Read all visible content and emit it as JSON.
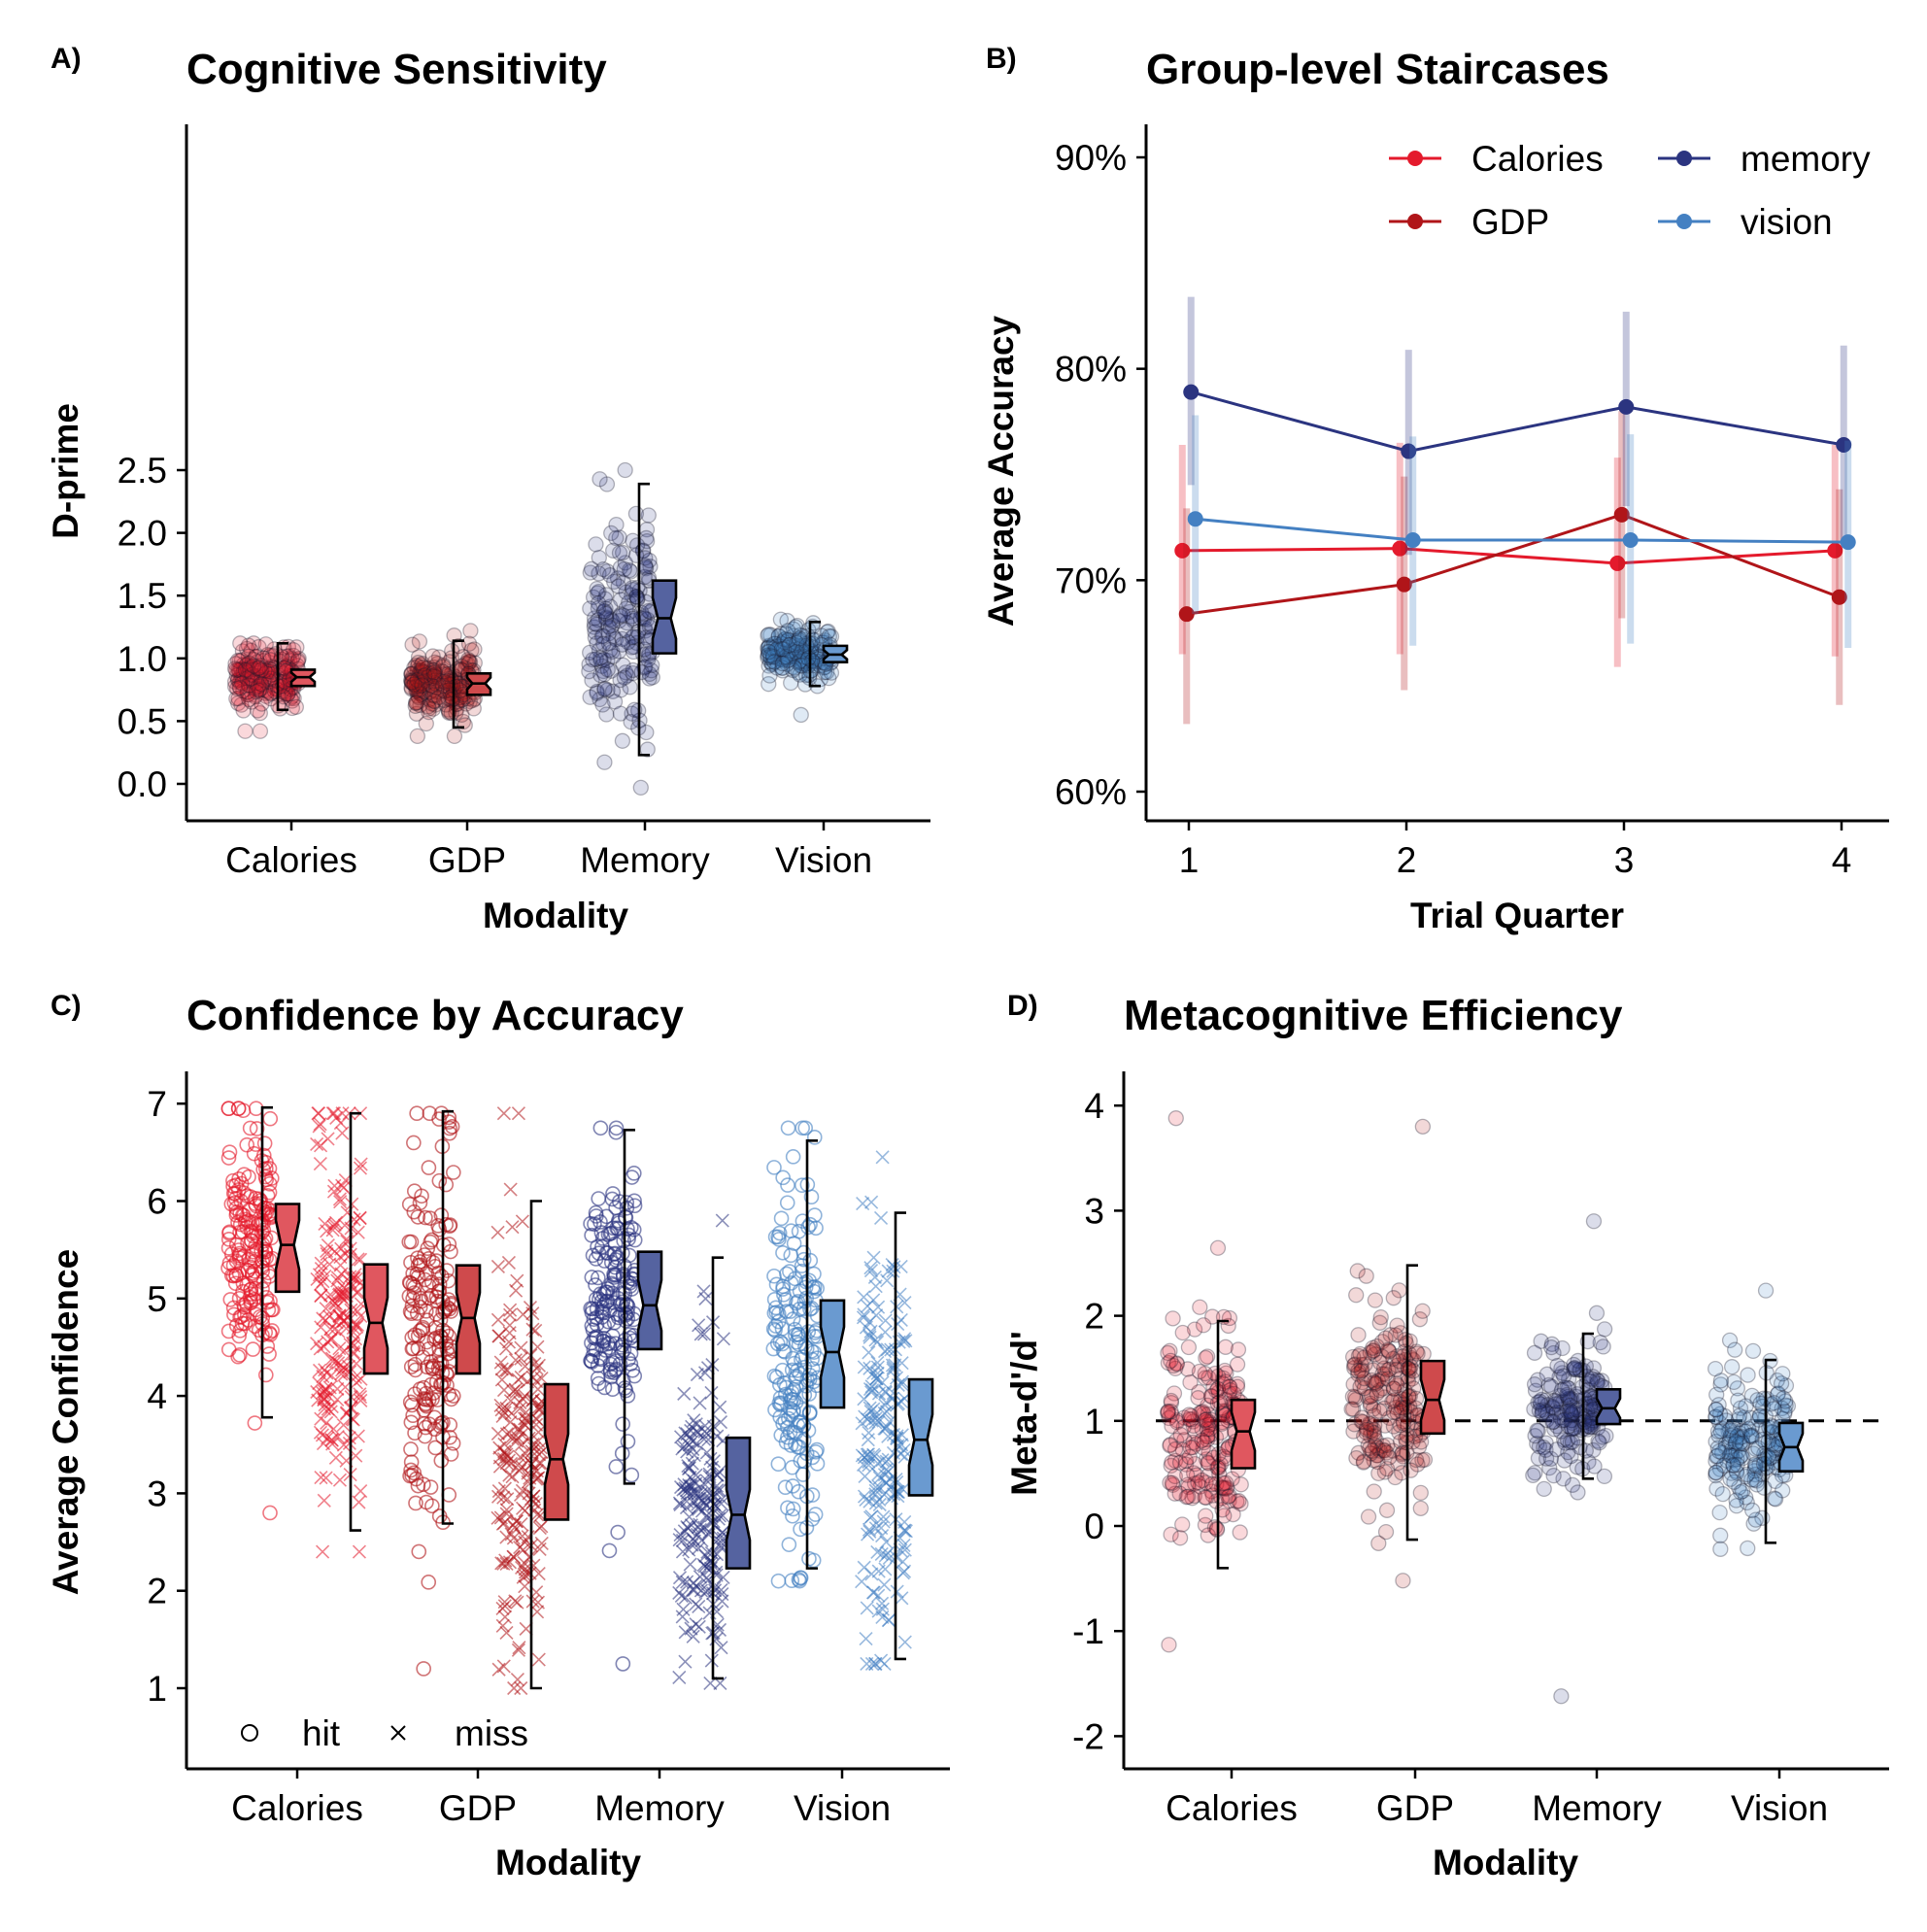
{
  "palette": {
    "Calories": "#e41a2c",
    "GDP": "#b01519",
    "Memory": "#2b3480",
    "Vision": "#4480c2",
    "box_Calories": "#e0575f",
    "box_GDP": "#cf4a4c",
    "box_Memory": "#5563a0",
    "box_Vision": "#6a9ad0"
  },
  "chart_data": [
    {
      "panel": "A)",
      "type": "scatter",
      "subtype": "jittered points with notched boxplot",
      "title": "Cognitive Sensitivity",
      "xlabel": "Modality",
      "ylabel": "D-prime",
      "categories": [
        "Calories",
        "GDP",
        "Memory",
        "Vision"
      ],
      "ylim": [
        -0.15,
        2.62
      ],
      "yticks": [
        "0.0",
        "0.5",
        "1.0",
        "1.5",
        "2.0",
        "2.5"
      ],
      "ytick_values": [
        0,
        0.5,
        1.0,
        1.5,
        2.0,
        2.5
      ],
      "series": [
        {
          "category": "Calories",
          "n": 220,
          "point_mean": 0.85,
          "point_sd": 0.12,
          "point_min": 0.42,
          "point_max": 1.12,
          "box": {
            "whisker_low": 0.59,
            "q1": 0.78,
            "median": 0.85,
            "q3": 0.91,
            "whisker_high": 1.12
          }
        },
        {
          "category": "GDP",
          "n": 220,
          "point_mean": 0.8,
          "point_sd": 0.14,
          "point_min": 0.38,
          "point_max": 1.22,
          "box": {
            "whisker_low": 0.45,
            "q1": 0.71,
            "median": 0.8,
            "q3": 0.88,
            "whisker_high": 1.14
          }
        },
        {
          "category": "Memory",
          "n": 200,
          "point_mean": 1.3,
          "point_sd": 0.42,
          "point_min": -0.03,
          "point_max": 2.5,
          "box": {
            "whisker_low": 0.23,
            "q1": 1.04,
            "median": 1.32,
            "q3": 1.62,
            "whisker_high": 2.39
          }
        },
        {
          "category": "Vision",
          "n": 210,
          "point_mean": 1.03,
          "point_sd": 0.09,
          "point_min": 0.55,
          "point_max": 1.31,
          "box": {
            "whisker_low": 0.78,
            "q1": 0.97,
            "median": 1.03,
            "q3": 1.1,
            "whisker_high": 1.29
          }
        }
      ]
    },
    {
      "panel": "B)",
      "type": "line",
      "title": "Group-level Staircases",
      "xlabel": "Trial Quarter",
      "ylabel": "Average Accuracy",
      "x": [
        1,
        2,
        3,
        4
      ],
      "ylim": [
        0.585,
        0.917
      ],
      "yticks": [
        "60%",
        "70%",
        "80%",
        "90%"
      ],
      "ytick_values": [
        0.6,
        0.7,
        0.8,
        0.9
      ],
      "legend_position": "top-right",
      "series": [
        {
          "name": "Calories",
          "color": "#e41a2c",
          "offset": -0.03,
          "values": [
            0.714,
            0.715,
            0.708,
            0.714
          ],
          "ci_low": [
            0.665,
            0.665,
            0.659,
            0.664
          ],
          "ci_high": [
            0.764,
            0.765,
            0.758,
            0.764
          ]
        },
        {
          "name": "GDP",
          "color": "#b01519",
          "offset": -0.01,
          "values": [
            0.684,
            0.698,
            0.731,
            0.692
          ],
          "ci_low": [
            0.632,
            0.648,
            0.682,
            0.641
          ],
          "ci_high": [
            0.734,
            0.749,
            0.78,
            0.743
          ]
        },
        {
          "name": "memory",
          "color": "#2b3480",
          "offset": 0.01,
          "values": [
            0.789,
            0.761,
            0.782,
            0.764
          ],
          "ci_low": [
            0.745,
            0.712,
            0.735,
            0.717
          ],
          "ci_high": [
            0.834,
            0.809,
            0.827,
            0.811
          ]
        },
        {
          "name": "vision",
          "color": "#4480c2",
          "offset": 0.03,
          "values": [
            0.729,
            0.719,
            0.719,
            0.718
          ],
          "ci_low": [
            0.684,
            0.669,
            0.67,
            0.668
          ],
          "ci_high": [
            0.778,
            0.768,
            0.769,
            0.766
          ]
        }
      ]
    },
    {
      "panel": "C)",
      "type": "scatter",
      "subtype": "jittered points with notched boxplot, split by accuracy",
      "title": "Confidence by Accuracy",
      "xlabel": "Modality",
      "ylabel": "Average Confidence",
      "categories": [
        "Calories",
        "GDP",
        "Memory",
        "Vision"
      ],
      "ylim": [
        0.2,
        7.3
      ],
      "yticks": [
        "1",
        "2",
        "3",
        "4",
        "5",
        "6",
        "7"
      ],
      "ytick_values": [
        1,
        2,
        3,
        4,
        5,
        6,
        7
      ],
      "legend": [
        {
          "marker": "circle",
          "label": "hit"
        },
        {
          "marker": "cross",
          "label": "miss"
        }
      ],
      "legend_position": "bottom-left",
      "series": [
        {
          "category": "Calories",
          "outcome": "hit",
          "n": 200,
          "point_mean": 5.5,
          "point_sd": 0.65,
          "point_min": 2.8,
          "point_max": 6.95,
          "box": {
            "whisker_low": 3.78,
            "q1": 5.07,
            "median": 5.55,
            "q3": 5.97,
            "whisker_high": 6.96
          }
        },
        {
          "category": "Calories",
          "outcome": "miss",
          "n": 210,
          "point_mean": 4.7,
          "point_sd": 0.95,
          "point_min": 2.4,
          "point_max": 6.9,
          "box": {
            "whisker_low": 2.62,
            "q1": 4.23,
            "median": 4.75,
            "q3": 5.35,
            "whisker_high": 6.9
          }
        },
        {
          "category": "GDP",
          "outcome": "hit",
          "n": 200,
          "point_mean": 4.8,
          "point_sd": 1.0,
          "point_min": 1.2,
          "point_max": 6.9,
          "box": {
            "whisker_low": 2.69,
            "q1": 4.23,
            "median": 4.8,
            "q3": 5.34,
            "whisker_high": 6.92
          }
        },
        {
          "category": "GDP",
          "outcome": "miss",
          "n": 210,
          "point_mean": 3.4,
          "point_sd": 1.1,
          "point_min": 1.0,
          "point_max": 6.9,
          "box": {
            "whisker_low": 1.0,
            "q1": 2.73,
            "median": 3.35,
            "q3": 4.12,
            "whisker_high": 6.0
          }
        },
        {
          "category": "Memory",
          "outcome": "hit",
          "n": 190,
          "point_mean": 4.95,
          "point_sd": 0.7,
          "point_min": 1.25,
          "point_max": 6.75,
          "box": {
            "whisker_low": 3.1,
            "q1": 4.48,
            "median": 4.93,
            "q3": 5.48,
            "whisker_high": 6.73
          }
        },
        {
          "category": "Memory",
          "outcome": "miss",
          "n": 200,
          "point_mean": 2.8,
          "point_sd": 0.85,
          "point_min": 1.05,
          "point_max": 5.8,
          "box": {
            "whisker_low": 1.1,
            "q1": 2.23,
            "median": 2.78,
            "q3": 3.57,
            "whisker_high": 5.42
          }
        },
        {
          "category": "Vision",
          "outcome": "hit",
          "n": 200,
          "point_mean": 4.45,
          "point_sd": 1.0,
          "point_min": 2.1,
          "point_max": 6.75,
          "box": {
            "whisker_low": 2.23,
            "q1": 3.88,
            "median": 4.45,
            "q3": 4.98,
            "whisker_high": 6.62
          }
        },
        {
          "category": "Vision",
          "outcome": "miss",
          "n": 210,
          "point_mean": 3.55,
          "point_sd": 1.0,
          "point_min": 1.25,
          "point_max": 6.45,
          "box": {
            "whisker_low": 1.3,
            "q1": 2.98,
            "median": 3.55,
            "q3": 4.17,
            "whisker_high": 5.88
          }
        }
      ]
    },
    {
      "panel": "D)",
      "type": "scatter",
      "subtype": "jittered points with notched boxplot",
      "title": "Metacognitive Efficiency",
      "xlabel": "Modality",
      "ylabel": "Meta-d'/d'",
      "categories": [
        "Calories",
        "GDP",
        "Memory",
        "Vision"
      ],
      "ylim": [
        -2.3,
        4.3
      ],
      "yticks": [
        "-2",
        "-1",
        "0",
        "1",
        "2",
        "3",
        "4"
      ],
      "ytick_values": [
        -2,
        -1,
        0,
        1,
        2,
        3,
        4
      ],
      "reference_line": 1,
      "series": [
        {
          "category": "Calories",
          "n": 220,
          "point_mean": 0.9,
          "point_sd": 0.5,
          "point_min": -1.13,
          "point_max": 3.88,
          "box": {
            "whisker_low": -0.4,
            "q1": 0.55,
            "median": 0.9,
            "q3": 1.2,
            "whisker_high": 1.95
          }
        },
        {
          "category": "GDP",
          "n": 220,
          "point_mean": 1.2,
          "point_sd": 0.5,
          "point_min": -0.52,
          "point_max": 3.8,
          "box": {
            "whisker_low": -0.13,
            "q1": 0.88,
            "median": 1.2,
            "q3": 1.57,
            "whisker_high": 2.48
          }
        },
        {
          "category": "Memory",
          "n": 200,
          "point_mean": 1.12,
          "point_sd": 0.32,
          "point_min": -1.62,
          "point_max": 2.9,
          "box": {
            "whisker_low": 0.45,
            "q1": 0.97,
            "median": 1.12,
            "q3": 1.3,
            "whisker_high": 1.83
          }
        },
        {
          "category": "Vision",
          "n": 210,
          "point_mean": 0.75,
          "point_sd": 0.35,
          "point_min": -0.22,
          "point_max": 2.24,
          "box": {
            "whisker_low": -0.16,
            "q1": 0.52,
            "median": 0.75,
            "q3": 0.98,
            "whisker_high": 1.58
          }
        }
      ]
    }
  ]
}
